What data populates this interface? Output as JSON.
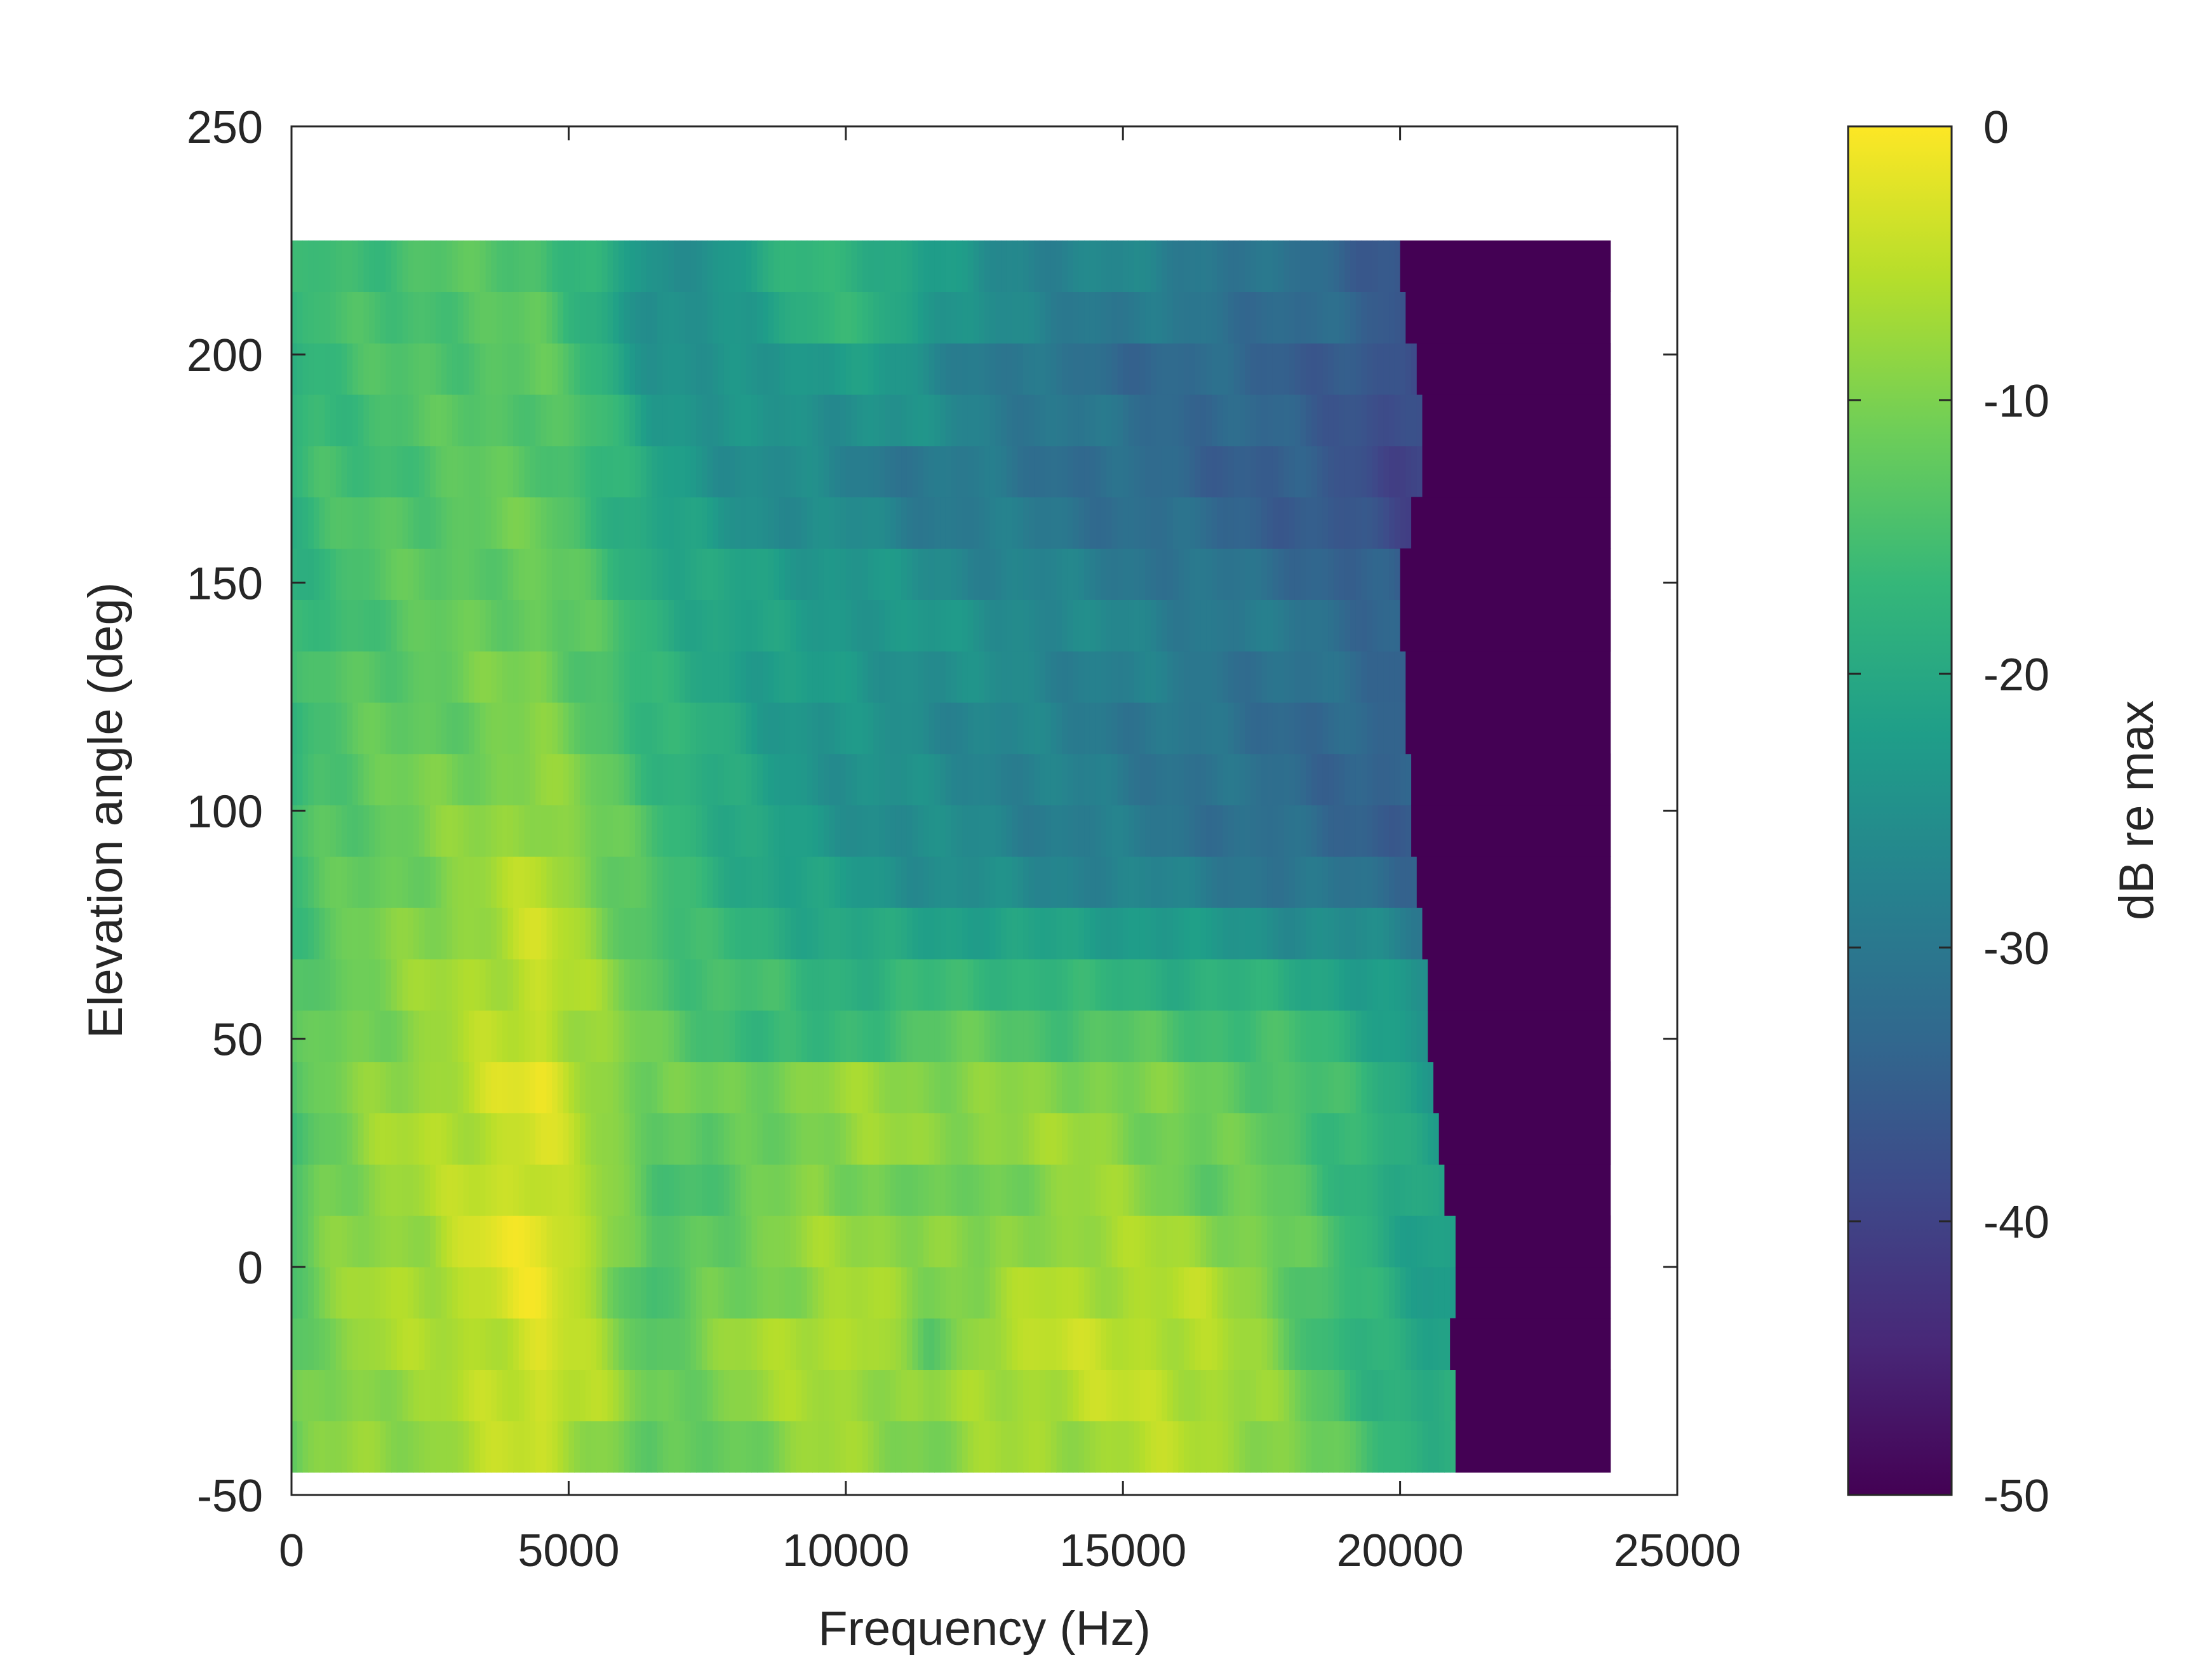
{
  "chart_data": {
    "type": "heatmap",
    "title": "",
    "xlabel": "Frequency (Hz)",
    "ylabel": "Elevation angle (deg)",
    "xlim": [
      0,
      25000
    ],
    "ylim": [
      -50,
      250
    ],
    "xticks": [
      0,
      5000,
      10000,
      15000,
      20000,
      25000
    ],
    "yticks": [
      -50,
      0,
      50,
      100,
      150,
      200,
      250
    ],
    "colorbar": {
      "label": "dB re max",
      "clim": [
        -50,
        0
      ],
      "ticks": [
        -50,
        -40,
        -30,
        -20,
        -10,
        0
      ],
      "colormap": "viridis"
    },
    "grid": false,
    "data_extent": {
      "x": [
        0,
        23800
      ],
      "y": [
        -45,
        225
      ]
    },
    "elevation_rows_deg": [
      -39.4,
      -28.1,
      -16.9,
      -5.6,
      5.6,
      16.9,
      28.1,
      39.4,
      50.6,
      61.9,
      73.1,
      84.4,
      95.6,
      106.9,
      118.1,
      129.4,
      140.6,
      151.9,
      163.1,
      174.4,
      185.6,
      196.9,
      208.1,
      219.4
    ],
    "cutoff_frequency_hz": [
      21000,
      21000,
      20900,
      21000,
      21000,
      20800,
      20700,
      20600,
      20500,
      20500,
      20400,
      20300,
      20200,
      20200,
      20100,
      20100,
      20000,
      20000,
      20200,
      20400,
      20400,
      20300,
      20100,
      20000
    ],
    "profile_frequency_hz": [
      0,
      500,
      1500,
      2500,
      3500,
      4500,
      5500,
      6500,
      7500,
      8500,
      9500,
      10500,
      11500,
      12500,
      13500,
      14500,
      15500,
      16500,
      17500,
      18500,
      19500,
      20500
    ],
    "level_db_re_max": [
      [
        -13,
        -10,
        -8,
        -8,
        -6,
        -4,
        -8,
        -14,
        -12,
        -10,
        -8,
        -8,
        -10,
        -8,
        -7,
        -7,
        -6,
        -6,
        -8,
        -12,
        -15,
        -18
      ],
      [
        -13,
        -10,
        -8,
        -8,
        -5,
        -3,
        -6,
        -12,
        -10,
        -8,
        -7,
        -7,
        -9,
        -7,
        -6,
        -5,
        -5,
        -6,
        -8,
        -13,
        -17,
        -20
      ],
      [
        -14,
        -10,
        -7,
        -7,
        -5,
        -3,
        -7,
        -13,
        -10,
        -7,
        -5,
        -6,
        -14,
        -6,
        -5,
        -5,
        -5,
        -6,
        -9,
        -15,
        -18,
        -22
      ],
      [
        -14,
        -10,
        -7,
        -6,
        -4,
        -2,
        -7,
        -16,
        -12,
        -10,
        -8,
        -7,
        -9,
        -9,
        -6,
        -6,
        -6,
        -6,
        -9,
        -15,
        -18,
        -22
      ],
      [
        -15,
        -11,
        -8,
        -7,
        -3,
        -1,
        -6,
        -15,
        -12,
        -10,
        -8,
        -8,
        -8,
        -11,
        -8,
        -7,
        -7,
        -8,
        -10,
        -14,
        -18,
        -22
      ],
      [
        -15,
        -11,
        -8,
        -7,
        -4,
        -3,
        -8,
        -14,
        -14,
        -12,
        -9,
        -10,
        -13,
        -11,
        -9,
        -8,
        -9,
        -12,
        -12,
        -15,
        -18,
        -22
      ],
      [
        -15,
        -12,
        -8,
        -6,
        -5,
        -3,
        -8,
        -11,
        -14,
        -12,
        -9,
        -8,
        -9,
        -8,
        -8,
        -8,
        -10,
        -12,
        -12,
        -15,
        -18,
        -22
      ],
      [
        -14,
        -12,
        -9,
        -7,
        -4,
        -2,
        -7,
        -12,
        -11,
        -10,
        -9,
        -8,
        -9,
        -9,
        -10,
        -9,
        -10,
        -12,
        -13,
        -15,
        -18,
        -22
      ],
      [
        -15,
        -12,
        -10,
        -8,
        -6,
        -4,
        -8,
        -12,
        -14,
        -17,
        -18,
        -15,
        -13,
        -13,
        -14,
        -14,
        -14,
        -15,
        -15,
        -17,
        -20,
        -24
      ],
      [
        -15,
        -12,
        -10,
        -8,
        -6,
        -4,
        -8,
        -13,
        -15,
        -16,
        -17,
        -18,
        -17,
        -16,
        -17,
        -18,
        -18,
        -18,
        -19,
        -20,
        -22,
        -26
      ],
      [
        -16,
        -13,
        -11,
        -9,
        -7,
        -4,
        -9,
        -14,
        -17,
        -18,
        -20,
        -21,
        -21,
        -21,
        -22,
        -22,
        -22,
        -24,
        -25,
        -25,
        -27,
        -30
      ],
      [
        -16,
        -14,
        -12,
        -10,
        -8,
        -5,
        -10,
        -15,
        -18,
        -20,
        -22,
        -24,
        -25,
        -26,
        -27,
        -27,
        -28,
        -29,
        -30,
        -31,
        -32,
        -33
      ],
      [
        -16,
        -14,
        -12,
        -10,
        -9,
        -7,
        -11,
        -15,
        -18,
        -21,
        -24,
        -25,
        -26,
        -27,
        -28,
        -29,
        -30,
        -31,
        -32,
        -33,
        -34,
        -36
      ],
      [
        -17,
        -14,
        -12,
        -11,
        -10,
        -8,
        -12,
        -16,
        -19,
        -22,
        -24,
        -25,
        -26,
        -27,
        -28,
        -29,
        -30,
        -31,
        -32,
        -33,
        -34,
        -36
      ],
      [
        -17,
        -15,
        -13,
        -12,
        -11,
        -10,
        -13,
        -17,
        -19,
        -22,
        -24,
        -25,
        -26,
        -27,
        -28,
        -29,
        -30,
        -31,
        -32,
        -33,
        -34,
        -36
      ],
      [
        -17,
        -15,
        -13,
        -12,
        -11,
        -10,
        -14,
        -18,
        -20,
        -22,
        -23,
        -24,
        -25,
        -26,
        -27,
        -28,
        -29,
        -30,
        -31,
        -32,
        -33,
        -35
      ],
      [
        -18,
        -16,
        -14,
        -13,
        -12,
        -11,
        -14,
        -18,
        -20,
        -22,
        -23,
        -23,
        -24,
        -25,
        -26,
        -27,
        -28,
        -29,
        -30,
        -31,
        -33,
        -35
      ],
      [
        -18,
        -16,
        -14,
        -13,
        -12,
        -12,
        -15,
        -19,
        -21,
        -22,
        -23,
        -24,
        -26,
        -27,
        -28,
        -29,
        -30,
        -31,
        -32,
        -33,
        -35,
        -37
      ],
      [
        -18,
        -16,
        -14,
        -13,
        -12,
        -12,
        -16,
        -21,
        -23,
        -25,
        -26,
        -27,
        -29,
        -29,
        -30,
        -31,
        -32,
        -33,
        -34,
        -36,
        -38,
        -40
      ],
      [
        -18,
        -16,
        -15,
        -14,
        -13,
        -13,
        -16,
        -21,
        -24,
        -26,
        -27,
        -29,
        -30,
        -30,
        -31,
        -32,
        -33,
        -34,
        -35,
        -36,
        -38,
        -40
      ],
      [
        -18,
        -16,
        -15,
        -14,
        -13,
        -13,
        -16,
        -22,
        -24,
        -25,
        -25,
        -24,
        -26,
        -28,
        -30,
        -31,
        -32,
        -33,
        -34,
        -35,
        -37,
        -40
      ],
      [
        -18,
        -16,
        -15,
        -14,
        -13,
        -13,
        -17,
        -24,
        -26,
        -24,
        -22,
        -23,
        -26,
        -29,
        -31,
        -32,
        -33,
        -33,
        -34,
        -35,
        -37,
        -40
      ],
      [
        -18,
        -16,
        -15,
        -14,
        -14,
        -13,
        -18,
        -27,
        -25,
        -21,
        -18,
        -18,
        -22,
        -26,
        -28,
        -29,
        -30,
        -31,
        -32,
        -33,
        -35,
        -38
      ],
      [
        -18,
        -16,
        -15,
        -14,
        -14,
        -14,
        -18,
        -26,
        -24,
        -20,
        -17,
        -18,
        -22,
        -26,
        -27,
        -27,
        -28,
        -29,
        -31,
        -33,
        -35,
        -37
      ]
    ]
  }
}
